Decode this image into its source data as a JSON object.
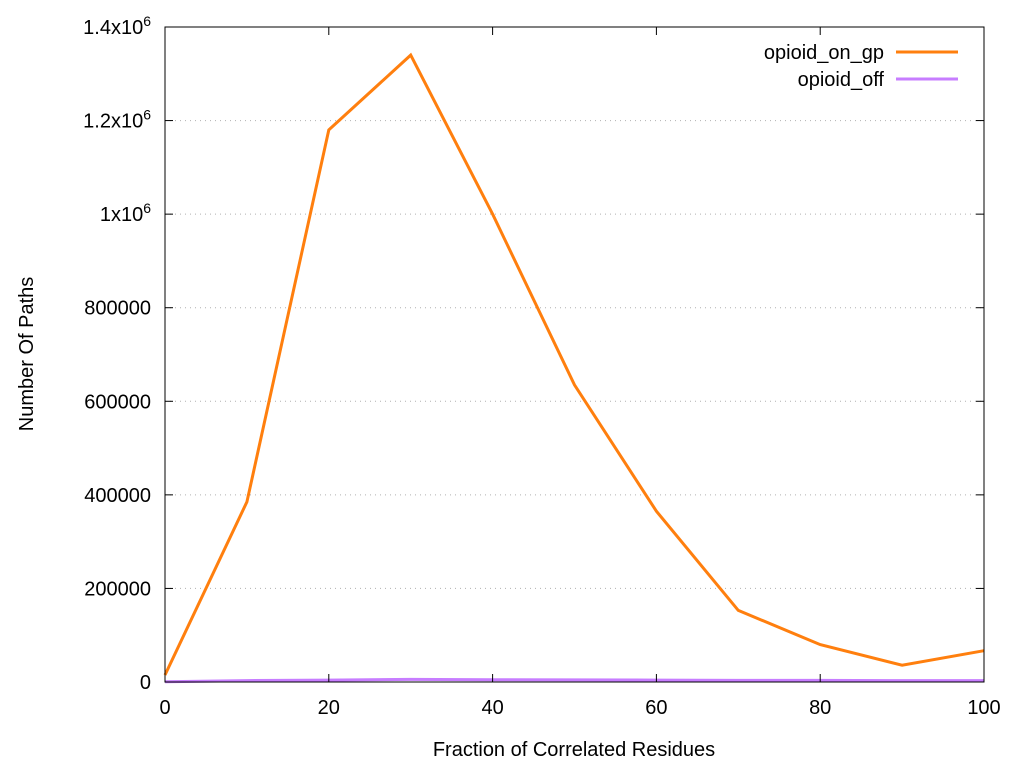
{
  "chart_data": {
    "type": "line",
    "xlabel": "Fraction of Correlated Residues",
    "ylabel": "Number Of Paths",
    "xlim": [
      0,
      100
    ],
    "ylim": [
      0,
      1400000
    ],
    "grid": "horizontal dotted",
    "legend_position": "top-right",
    "x_ticks": [
      {
        "value": 0,
        "label": "0"
      },
      {
        "value": 20,
        "label": "20"
      },
      {
        "value": 40,
        "label": "40"
      },
      {
        "value": 60,
        "label": "60"
      },
      {
        "value": 80,
        "label": "80"
      },
      {
        "value": 100,
        "label": "100"
      }
    ],
    "y_ticks": [
      {
        "value": 0,
        "label": "0",
        "sup": ""
      },
      {
        "value": 200000,
        "label": "200000",
        "sup": ""
      },
      {
        "value": 400000,
        "label": "400000",
        "sup": ""
      },
      {
        "value": 600000,
        "label": "600000",
        "sup": ""
      },
      {
        "value": 800000,
        "label": "800000",
        "sup": ""
      },
      {
        "value": 1000000,
        "label": "1x10",
        "sup": "6"
      },
      {
        "value": 1200000,
        "label": "1.2x10",
        "sup": "6"
      },
      {
        "value": 1400000,
        "label": "1.4x10",
        "sup": "6"
      }
    ],
    "x": [
      0,
      10,
      20,
      30,
      40,
      50,
      60,
      70,
      80,
      90,
      100
    ],
    "series": [
      {
        "name": "opioid_on_gp",
        "color": "#ff7f0e",
        "values": [
          15000,
          385000,
          1180000,
          1340000,
          1000000,
          635000,
          365000,
          153000,
          80000,
          36000,
          67000
        ]
      },
      {
        "name": "opioid_off",
        "color": "#c77dff",
        "values": [
          500,
          3000,
          4000,
          5500,
          5000,
          4500,
          4000,
          3500,
          3500,
          3000,
          3000
        ]
      }
    ]
  }
}
